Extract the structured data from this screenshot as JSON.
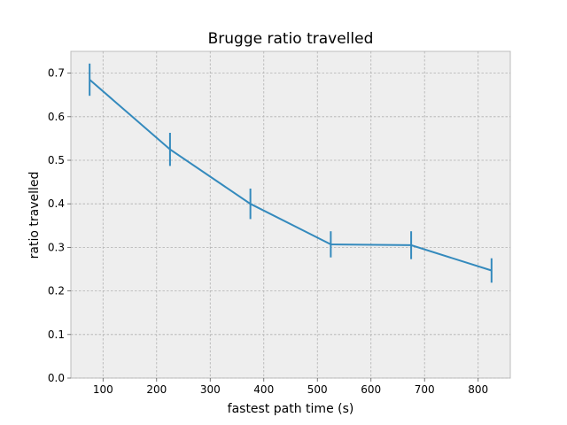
{
  "chart_data": {
    "type": "line",
    "title": "Brugge ratio travelled",
    "xlabel": "fastest path time (s)",
    "ylabel": "ratio travelled",
    "xlim": [
      40,
      860
    ],
    "ylim": [
      0,
      0.75
    ],
    "xticks": [
      100,
      200,
      300,
      400,
      500,
      600,
      700,
      800
    ],
    "yticks": [
      0.0,
      0.1,
      0.2,
      0.3,
      0.4,
      0.5,
      0.6,
      0.7
    ],
    "ytick_labels": [
      "0.0",
      "0.1",
      "0.2",
      "0.3",
      "0.4",
      "0.5",
      "0.6",
      "0.7"
    ],
    "grid": true,
    "color": "#348abd",
    "x": [
      75,
      225,
      375,
      525,
      675,
      825
    ],
    "y": [
      0.685,
      0.525,
      0.4,
      0.307,
      0.305,
      0.247
    ],
    "yerr": [
      0.037,
      0.038,
      0.035,
      0.03,
      0.032,
      0.028
    ]
  }
}
